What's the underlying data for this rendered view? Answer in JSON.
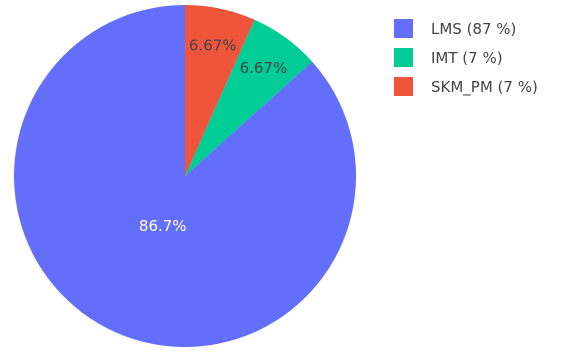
{
  "chart_data": {
    "type": "pie",
    "title": "",
    "labels": [
      "LMS",
      "IMT",
      "SKM_PM"
    ],
    "values": [
      86.7,
      6.67,
      6.67
    ],
    "slice_labels": [
      "86.7%",
      "6.67%",
      "6.67%"
    ],
    "colors": [
      "#636efa",
      "#00cc96",
      "#ef553b"
    ],
    "label_colors": [
      "#ffffff",
      "#444444",
      "#444444"
    ],
    "legend": {
      "placement": "top-right",
      "entries": [
        "LMS (87 %)",
        "IMT (7 %)",
        "SKM_PM (7 %)"
      ]
    },
    "direction": "counterclockwise",
    "start": "top"
  }
}
